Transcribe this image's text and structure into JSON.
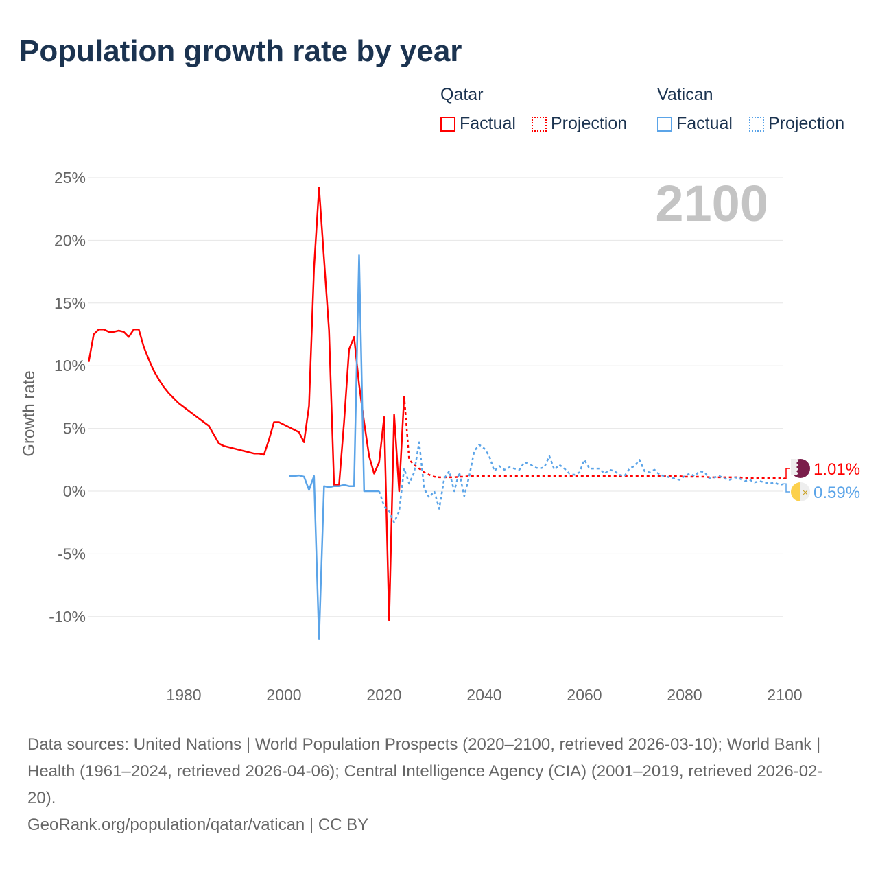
{
  "title": "Population growth rate by year",
  "legend": {
    "groups": [
      {
        "name": "Qatar",
        "color": "#ff0000",
        "items": [
          "Factual",
          "Projection"
        ]
      },
      {
        "name": "Vatican",
        "color": "#5ba4e8",
        "items": [
          "Factual",
          "Projection"
        ]
      }
    ]
  },
  "year_label": "2100",
  "footer": {
    "sources": "Data sources: United Nations | World Population Prospects (2020–2100, retrieved 2026-03-10); World Bank | Health (1961–2024, retrieved 2026-04-06); Central Intelligence Agency (CIA) (2001–2019, retrieved 2026-02-20).",
    "credit": "GeoRank.org/population/qatar/vatican | CC BY"
  },
  "chart_data": {
    "type": "line",
    "title": "Population growth rate by year",
    "ylabel": "Growth rate",
    "xlabel": "",
    "xlim": [
      1961,
      2100
    ],
    "ylim": [
      -12.5,
      26
    ],
    "xticks": [
      1980,
      2000,
      2020,
      2040,
      2060,
      2080,
      2100
    ],
    "yticks": [
      -10,
      -5,
      0,
      5,
      10,
      15,
      20,
      25
    ],
    "ytick_labels": [
      "-10%",
      "-5%",
      "0%",
      "5%",
      "10%",
      "15%",
      "20%",
      "25%"
    ],
    "grid": true,
    "series": [
      {
        "name": "Qatar Factual",
        "color": "#ff0000",
        "dash": false,
        "x0": 1961,
        "values": [
          10.3,
          12.5,
          12.9,
          12.9,
          12.7,
          12.7,
          12.8,
          12.7,
          12.3,
          12.9,
          12.9,
          11.5,
          10.5,
          9.6,
          8.9,
          8.3,
          7.8,
          7.4,
          7.0,
          6.7,
          6.4,
          6.1,
          5.8,
          5.5,
          5.2,
          4.5,
          3.8,
          3.6,
          3.5,
          3.4,
          3.3,
          3.2,
          3.1,
          3.0,
          3.0,
          2.9,
          4.1,
          5.5,
          5.5,
          5.3,
          5.1,
          4.9,
          4.7,
          3.9,
          6.8,
          17.8,
          24.2,
          18.5,
          12.8,
          0.5,
          0.5,
          5.5,
          11.3,
          12.3,
          8.5,
          5.5,
          2.8,
          1.4,
          2.3,
          5.9,
          -10.3,
          6.1,
          0,
          7.6
        ]
      },
      {
        "name": "Qatar Projection",
        "color": "#ff0000",
        "dash": true,
        "x0": 2024,
        "values": [
          7.6,
          2.5,
          2.1,
          1.8,
          1.5,
          1.3,
          1.15,
          1.1,
          1.1,
          1.1,
          1.1,
          1.15,
          1.15,
          1.2,
          1.2,
          1.2,
          1.2,
          1.2,
          1.2,
          1.2,
          1.2,
          1.2,
          1.2,
          1.2,
          1.2,
          1.2,
          1.2,
          1.2,
          1.2,
          1.2,
          1.2,
          1.2,
          1.2,
          1.2,
          1.2,
          1.2,
          1.2,
          1.2,
          1.2,
          1.2,
          1.2,
          1.2,
          1.2,
          1.2,
          1.2,
          1.2,
          1.2,
          1.2,
          1.2,
          1.2,
          1.2,
          1.2,
          1.2,
          1.2,
          1.2,
          1.2,
          1.15,
          1.15,
          1.15,
          1.15,
          1.15,
          1.1,
          1.1,
          1.1,
          1.1,
          1.1,
          1.1,
          1.1,
          1.05,
          1.05,
          1.05,
          1.05,
          1.05,
          1.05,
          1.05,
          1.05,
          1.01
        ]
      },
      {
        "name": "Vatican Factual",
        "color": "#5ba4e8",
        "dash": false,
        "x0": 2001,
        "values": [
          1.2,
          1.2,
          1.25,
          1.15,
          0.1,
          1.2,
          -11.8,
          0.4,
          0.3,
          0.4,
          0.4,
          0.5,
          0.4,
          0.4,
          18.8,
          0,
          0,
          0,
          0
        ]
      },
      {
        "name": "Vatican Projection",
        "color": "#5ba4e8",
        "dash": true,
        "x0": 2019,
        "values": [
          0,
          -1.2,
          -1.6,
          -2.5,
          -1.6,
          1.8,
          0.6,
          1.5,
          3.9,
          0.2,
          -0.5,
          0,
          -1.4,
          1.0,
          1.6,
          0,
          1.5,
          -0.4,
          1.2,
          3.2,
          3.7,
          3.4,
          2.8,
          1.6,
          2.0,
          1.7,
          1.9,
          1.8,
          1.7,
          2.3,
          2.2,
          1.9,
          1.8,
          1.9,
          2.8,
          1.7,
          2.1,
          1.8,
          1.4,
          1.3,
          1.5,
          2.5,
          1.8,
          1.8,
          1.8,
          1.4,
          1.7,
          1.6,
          1.3,
          1.2,
          1.8,
          2.0,
          2.5,
          1.6,
          1.5,
          1.7,
          1.3,
          1.2,
          1.1,
          1.0,
          0.9,
          1.2,
          1.4,
          1.2,
          1.6,
          1.5,
          1.0,
          1.1,
          1.2,
          1.0,
          0.9,
          1.1,
          1.0,
          0.8,
          0.9,
          0.7,
          0.8,
          0.7,
          0.6,
          0.7,
          0.5,
          0.59
        ]
      }
    ],
    "end_labels": [
      {
        "series": "Qatar",
        "text": "1.01%",
        "value": 1.01,
        "color": "#ff0000"
      },
      {
        "series": "Vatican",
        "text": "0.59%",
        "value": 0.59,
        "color": "#5ba4e8"
      }
    ]
  }
}
